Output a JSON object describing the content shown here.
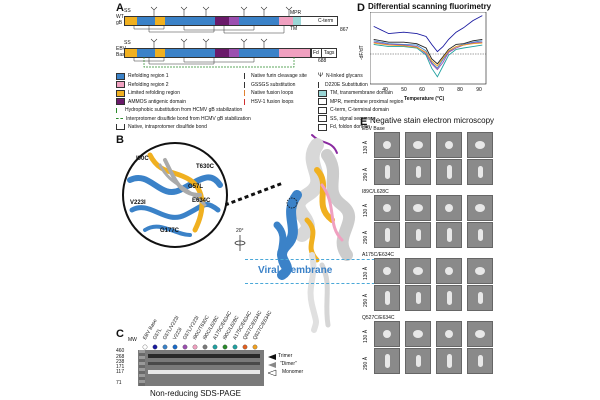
{
  "panelA": {
    "letter": "A",
    "row1_label_l1": "WT",
    "row1_label_l2": "gB",
    "row1_ss": "SS",
    "row1_mpr": "MPR",
    "row1_tm": "TM",
    "row1_cterm": "C-term",
    "row1_end": "867",
    "row2_label_l1": "EBV",
    "row2_label_l2": "Base",
    "row2_ss": "SS",
    "row2_fd": "Fd",
    "row2_tags": "Tags",
    "row2_end": "688",
    "legend_left": [
      {
        "label": "Refolding region 1",
        "color": "#3b82c8"
      },
      {
        "label": "Refolding region 2",
        "color": "#f0a0c0"
      },
      {
        "label": "Limited refolding region",
        "color": "#f0b020"
      },
      {
        "label": "AMMOS antigenic domain",
        "color": "#6a1a6a"
      },
      {
        "label": "Hydrophobic substitution from HCMV gB stabilization",
        "color": "#2a8a2a"
      },
      {
        "label": "Interprotomer disulfide bond from HCMV gB stabilization",
        "color": "#2a8a2a"
      },
      {
        "label": "Native, intraprotomer disulfide bond",
        "color": "#ffffff"
      }
    ],
    "legend_mid": [
      {
        "label": "Native furin cleavage site",
        "color": "#ffffff"
      },
      {
        "label": "GSSGS substitution",
        "color": "#ffffff"
      },
      {
        "label": "Native fusion loops",
        "color": "#ffffff"
      },
      {
        "label": "HSV-1 fusion loops",
        "color": "#ffffff"
      }
    ],
    "legend_right": [
      {
        "label": "N-linked glycans",
        "color": "#ffffff"
      },
      {
        "label": "D220E Substitution",
        "color": "#ffffff"
      },
      {
        "label": "TM, transmembrane domain",
        "color": "#9ad6d6"
      },
      {
        "label": "MPR, membrane proximal region",
        "color": "#ffffff"
      },
      {
        "label": "C-term, C-terminal domain",
        "color": "#ffffff"
      },
      {
        "label": "SS, signal sequence",
        "color": "#ffffff"
      },
      {
        "label": "Fd, foldon domain",
        "color": "#ffffff"
      }
    ]
  },
  "panelB": {
    "letter": "B",
    "residues": [
      "I90C",
      "T630C",
      "G57L",
      "V223I",
      "E634C",
      "G177C"
    ],
    "rotation": "20°",
    "membrane": "Viral Membrane"
  },
  "panelC": {
    "letter": "C",
    "mw_label": "MW",
    "lanes": [
      "EBV Base",
      "G57L",
      "G57L/V223I",
      "V223I",
      "G57L/Y223I",
      "I90C/T630C",
      "I90C/L628C",
      "A175C/E634C",
      "I90C/L628C",
      "A175C/E634C",
      "Q527C/E634C",
      "Q527C/E634C"
    ],
    "mw_markers": [
      "460",
      "268",
      "238",
      "171",
      "117",
      "71"
    ],
    "trimer": "Trimer",
    "dimer": "“Dimer”",
    "monomer": "Monomer",
    "caption": "Non-reducing SDS-PAGE"
  },
  "panelD": {
    "letter": "D",
    "title": "Differential scanning fluorimetry",
    "ylabel": "-dF/dT",
    "xlabel": "Temperature (°C)",
    "xticks": [
      "40",
      "50",
      "60",
      "70",
      "80",
      "90"
    ]
  },
  "panelE": {
    "letter": "E",
    "title": "Negative stain electron microscopy",
    "groups": [
      {
        "name": "EBV Base",
        "rows": [
          "130 Å",
          "290 Å"
        ]
      },
      {
        "name": "I89C/L628C",
        "rows": [
          "130 Å",
          "290 Å"
        ]
      },
      {
        "name": "A175C/E634C",
        "rows": [
          "130 Å",
          "290 Å"
        ]
      },
      {
        "name": "Q527C/E634C",
        "rows": [
          "130 Å",
          "290 Å"
        ]
      }
    ]
  },
  "chart_data": {
    "type": "line",
    "title": "Differential scanning fluorimetry",
    "xlabel": "Temperature (°C)",
    "ylabel": "-dF/dT",
    "xlim": [
      30,
      92
    ],
    "x": [
      32,
      40,
      48,
      55,
      60,
      63,
      66,
      69,
      72,
      76,
      80,
      85,
      90
    ],
    "series": [
      {
        "color": "#1a1aa0",
        "values": [
          0.8,
          0.7,
          0.72,
          0.7,
          0.66,
          0.55,
          0.45,
          0.52,
          0.62,
          0.72,
          0.78,
          0.88,
          0.95
        ]
      },
      {
        "color": "#222222",
        "values": [
          0.62,
          0.58,
          0.58,
          0.56,
          0.5,
          0.35,
          0.28,
          0.38,
          0.48,
          0.55,
          0.56,
          0.6,
          0.62
        ]
      },
      {
        "color": "#3b82c8",
        "values": [
          0.6,
          0.56,
          0.55,
          0.54,
          0.46,
          0.3,
          0.22,
          0.34,
          0.45,
          0.52,
          0.55,
          0.58,
          0.6
        ]
      },
      {
        "color": "#9b4fb0",
        "values": [
          0.58,
          0.55,
          0.54,
          0.52,
          0.42,
          0.28,
          0.2,
          0.3,
          0.44,
          0.5,
          0.54,
          0.57,
          0.58
        ]
      },
      {
        "color": "#20a0a0",
        "values": [
          0.55,
          0.52,
          0.52,
          0.5,
          0.4,
          0.22,
          0.1,
          0.25,
          0.4,
          0.48,
          0.5,
          0.52,
          0.54
        ]
      },
      {
        "color": "#f0a020",
        "values": [
          0.57,
          0.54,
          0.53,
          0.51,
          0.44,
          0.32,
          0.25,
          0.36,
          0.46,
          0.52,
          0.54,
          0.56,
          0.57
        ]
      }
    ]
  }
}
